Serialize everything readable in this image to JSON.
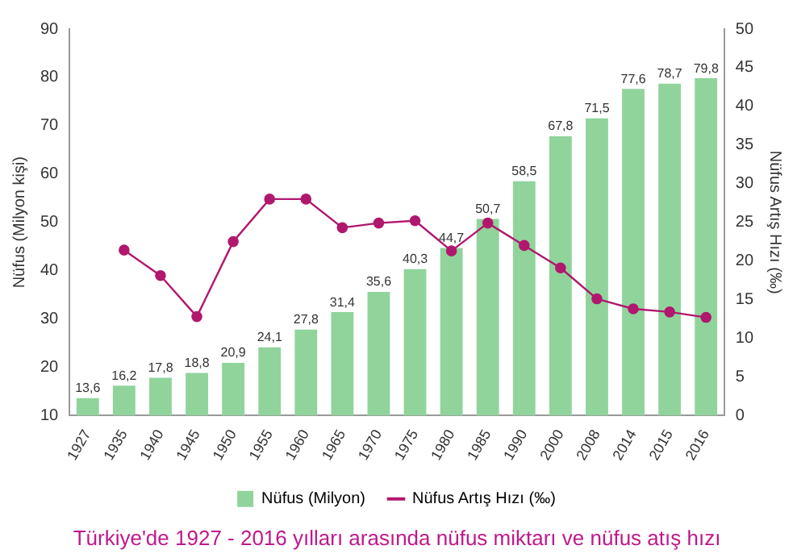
{
  "chart_data": {
    "type": "bar",
    "title": "Türkiye'de 1927 - 2016 yılları arasında nüfus miktarı ve nüfus atış hızı",
    "ylabel": "Nüfus (Milyon kişi)",
    "y2label": "Nüfus Artış Hızı (‰)",
    "categories": [
      "1927",
      "1935",
      "1940",
      "1945",
      "1950",
      "1955",
      "1960",
      "1965",
      "1970",
      "1975",
      "1980",
      "1985",
      "1990",
      "2000",
      "2008",
      "2014",
      "2015",
      "2016"
    ],
    "series": [
      {
        "name": "Nüfus (Milyon)",
        "color": "#90d49c",
        "values": [
          13.6,
          16.2,
          17.8,
          18.8,
          20.9,
          24.1,
          27.8,
          31.4,
          35.6,
          40.3,
          44.7,
          50.7,
          58.5,
          67.8,
          71.5,
          77.6,
          78.7,
          79.8
        ],
        "value_labels": [
          "13,6",
          "16,2",
          "17,8",
          "18,8",
          "20,9",
          "24,1",
          "27,8",
          "31,4",
          "35,6",
          "40,3",
          "44,7",
          "50,7",
          "58,5",
          "67,8",
          "71,5",
          "77,6",
          "78,7",
          "79,8"
        ]
      },
      {
        "name": "Nüfus Artış Hızı (‰)",
        "type": "line",
        "axis": "y2",
        "color": "#b0186e",
        "values": [
          null,
          21.4,
          18.1,
          12.8,
          22.5,
          28.0,
          28.0,
          24.3,
          24.9,
          25.2,
          21.3,
          24.9,
          22.0,
          19.1,
          15.1,
          13.8,
          13.4,
          12.7
        ]
      }
    ],
    "ylim": [
      10,
      90
    ],
    "yticks": [
      10,
      20,
      30,
      40,
      50,
      60,
      70,
      80,
      90
    ],
    "y2lim": [
      0,
      50
    ],
    "y2ticks": [
      0,
      5,
      10,
      15,
      20,
      25,
      30,
      35,
      40,
      45,
      50
    ],
    "grid": false,
    "legend": "bottom",
    "marker": "circle",
    "line_style": "solid"
  }
}
